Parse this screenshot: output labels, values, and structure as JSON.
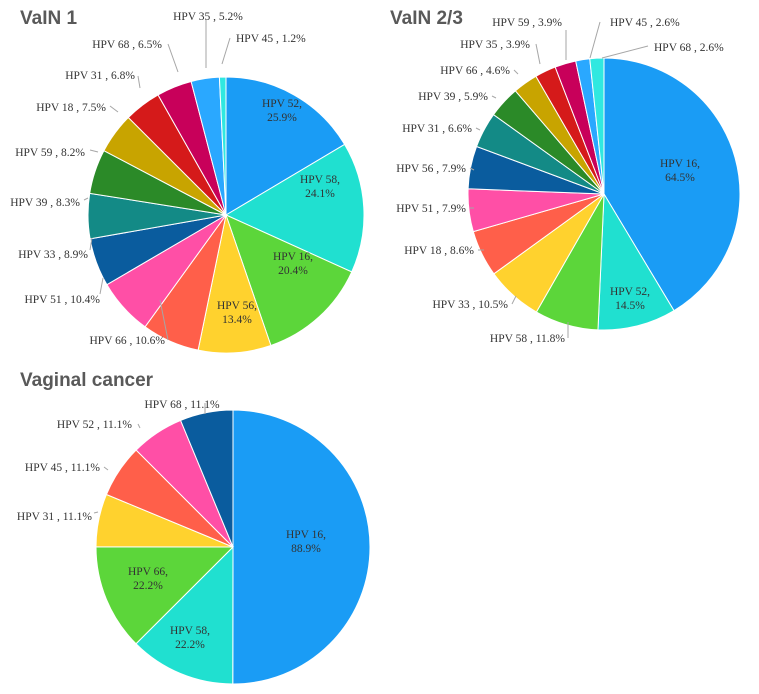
{
  "chart_data": [
    {
      "type": "pie",
      "title": "VaIN 1",
      "slices": [
        {
          "label": "HPV 52",
          "value": 25.9,
          "pct": "25.9%",
          "color": "#1a9cf5"
        },
        {
          "label": "HPV 58",
          "value": 24.1,
          "pct": "24.1%",
          "color": "#20e0d0"
        },
        {
          "label": "HPV 16",
          "value": 20.4,
          "pct": "20.4%",
          "color": "#5cd63a"
        },
        {
          "label": "HPV 56",
          "value": 13.4,
          "pct": "13.4%",
          "color": "#ffd22e"
        },
        {
          "label": "HPV 66",
          "value": 10.6,
          "pct": "10.6%",
          "color": "#ff5f4a"
        },
        {
          "label": "HPV 51",
          "value": 10.4,
          "pct": "10.4%",
          "color": "#ff4fa6"
        },
        {
          "label": "HPV 33",
          "value": 8.9,
          "pct": "8.9%",
          "color": "#0a5c9e"
        },
        {
          "label": "HPV 39",
          "value": 8.3,
          "pct": "8.3%",
          "color": "#138a86"
        },
        {
          "label": "HPV 59",
          "value": 8.2,
          "pct": "8.2%",
          "color": "#2b8a28"
        },
        {
          "label": "HPV 18",
          "value": 7.5,
          "pct": "7.5%",
          "color": "#c8a400"
        },
        {
          "label": "HPV 31",
          "value": 6.8,
          "pct": "6.8%",
          "color": "#d51a1a"
        },
        {
          "label": "HPV 68",
          "value": 6.5,
          "pct": "6.5%",
          "color": "#c8005a"
        },
        {
          "label": "HPV 35",
          "value": 5.2,
          "pct": "5.2%",
          "color": "#2aa8ff"
        },
        {
          "label": "HPV 45",
          "value": 1.2,
          "pct": "1.2%",
          "color": "#30e8e0"
        }
      ]
    },
    {
      "type": "pie",
      "title": "VaIN 2/3",
      "slices": [
        {
          "label": "HPV 16",
          "value": 64.5,
          "pct": "64.5%",
          "color": "#1a9cf5"
        },
        {
          "label": "HPV 52",
          "value": 14.5,
          "pct": "14.5%",
          "color": "#20e0d0"
        },
        {
          "label": "HPV 58",
          "value": 11.8,
          "pct": "11.8%",
          "color": "#5cd63a"
        },
        {
          "label": "HPV 33",
          "value": 10.5,
          "pct": "10.5%",
          "color": "#ffd22e"
        },
        {
          "label": "HPV 18",
          "value": 8.6,
          "pct": "8.6%",
          "color": "#ff5f4a"
        },
        {
          "label": "HPV 51",
          "value": 7.9,
          "pct": "7.9%",
          "color": "#ff4fa6"
        },
        {
          "label": "HPV 56",
          "value": 7.9,
          "pct": "7.9%",
          "color": "#0a5c9e"
        },
        {
          "label": "HPV 31",
          "value": 6.6,
          "pct": "6.6%",
          "color": "#138a86"
        },
        {
          "label": "HPV 39",
          "value": 5.9,
          "pct": "5.9%",
          "color": "#2b8a28"
        },
        {
          "label": "HPV 66",
          "value": 4.6,
          "pct": "4.6%",
          "color": "#c8a400"
        },
        {
          "label": "HPV 35",
          "value": 3.9,
          "pct": "3.9%",
          "color": "#d51a1a"
        },
        {
          "label": "HPV 59",
          "value": 3.9,
          "pct": "3.9%",
          "color": "#c8005a"
        },
        {
          "label": "HPV 45",
          "value": 2.6,
          "pct": "2.6%",
          "color": "#2aa8ff"
        },
        {
          "label": "HPV 68",
          "value": 2.6,
          "pct": "2.6%",
          "color": "#30e8e0"
        }
      ]
    },
    {
      "type": "pie",
      "title": "Vaginal cancer",
      "slices": [
        {
          "label": "HPV 16",
          "value": 88.9,
          "pct": "88.9%",
          "color": "#1a9cf5"
        },
        {
          "label": "HPV 58",
          "value": 22.2,
          "pct": "22.2%",
          "color": "#20e0d0"
        },
        {
          "label": "HPV 66",
          "value": 22.2,
          "pct": "22.2%",
          "color": "#5cd63a"
        },
        {
          "label": "HPV 31",
          "value": 11.1,
          "pct": "11.1%",
          "color": "#ffd22e"
        },
        {
          "label": "HPV 45",
          "value": 11.1,
          "pct": "11.1%",
          "color": "#ff5f4a"
        },
        {
          "label": "HPV 52",
          "value": 11.1,
          "pct": "11.1%",
          "color": "#ff4fa6"
        },
        {
          "label": "HPV 68",
          "value": 11.1,
          "pct": "11.1%",
          "color": "#0a5c9e"
        }
      ]
    }
  ]
}
